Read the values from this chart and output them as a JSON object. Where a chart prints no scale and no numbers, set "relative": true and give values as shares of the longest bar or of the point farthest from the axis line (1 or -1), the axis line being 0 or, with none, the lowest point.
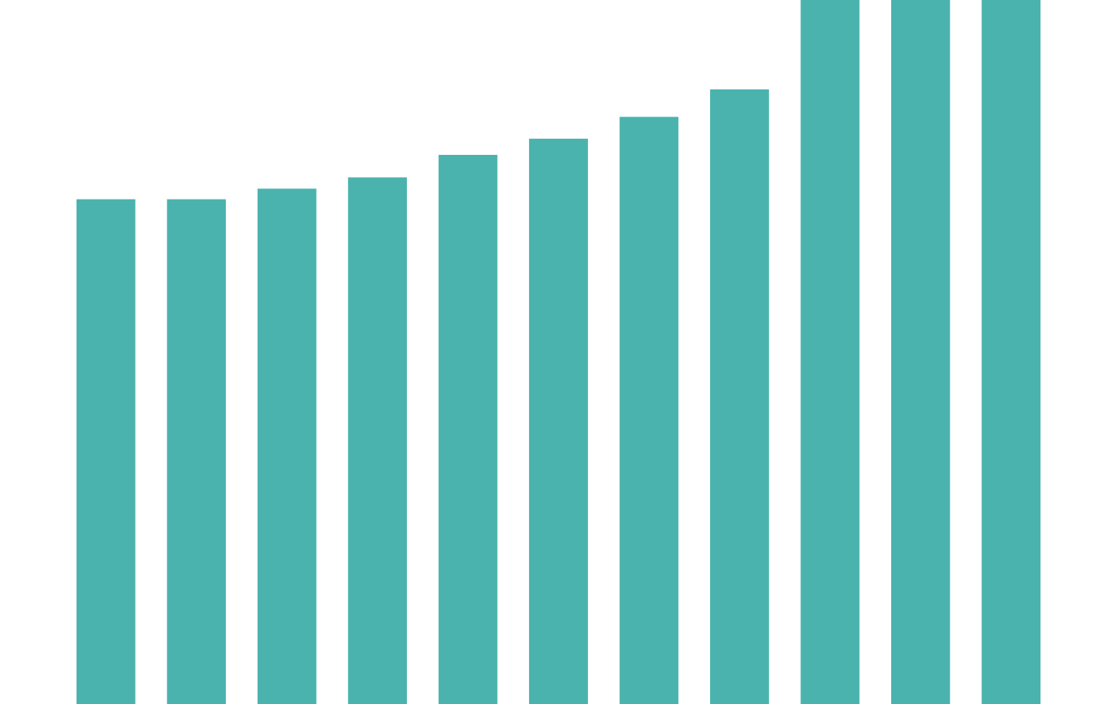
{
  "chart_data": {
    "type": "bar",
    "relative": true,
    "categories": [
      null,
      null,
      null,
      null,
      null,
      null,
      null,
      null,
      null,
      null,
      null
    ],
    "values": [
      0.717,
      0.717,
      0.732,
      0.748,
      0.78,
      0.803,
      0.834,
      0.873,
      1,
      1,
      1
    ],
    "color": "#4ab3ae"
  }
}
